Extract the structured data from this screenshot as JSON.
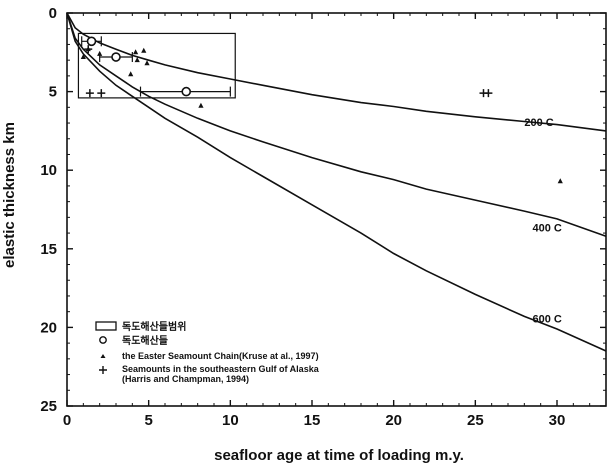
{
  "chart_data": {
    "type": "line",
    "xlabel": "seafloor age at time of loading m.y.",
    "ylabel": "elastic thickness km",
    "xlim": [
      0,
      33
    ],
    "ylim": [
      0,
      25
    ],
    "y_inverted": true,
    "x_ticks": [
      "0",
      "5",
      "10",
      "15",
      "20",
      "25",
      "30"
    ],
    "y_ticks": [
      "0",
      "5",
      "10",
      "15",
      "20",
      "25"
    ],
    "grid": false,
    "legend_position": "bottom-left",
    "series": [
      {
        "name": "200°C",
        "label_text": "200 C",
        "type": "line",
        "x": [
          0,
          0.5,
          1,
          2,
          3,
          4,
          5,
          6,
          8,
          10,
          12,
          15,
          18,
          20,
          22,
          25,
          28,
          30,
          33
        ],
        "y": [
          0,
          0.95,
          1.35,
          1.9,
          2.3,
          2.7,
          3.0,
          3.3,
          3.8,
          4.2,
          4.6,
          5.2,
          5.7,
          5.95,
          6.25,
          6.6,
          6.9,
          7.1,
          7.5
        ]
      },
      {
        "name": "400°C",
        "label_text": "400 C",
        "type": "line",
        "x": [
          0,
          0.5,
          1,
          2,
          3,
          4,
          5,
          6,
          8,
          10,
          12,
          15,
          18,
          20,
          22,
          25,
          28,
          30,
          33
        ],
        "y": [
          0,
          1.6,
          2.3,
          3.3,
          4.0,
          4.7,
          5.3,
          5.8,
          6.7,
          7.5,
          8.2,
          9.2,
          10.1,
          10.6,
          11.2,
          11.9,
          12.6,
          13.1,
          14.2
        ]
      },
      {
        "name": "600°C",
        "label_text": "600 C",
        "type": "line",
        "x": [
          0,
          0.5,
          1,
          2,
          3,
          4,
          5,
          6,
          8,
          10,
          12,
          15,
          18,
          20,
          22,
          25,
          28,
          30,
          33
        ],
        "y": [
          0,
          1.8,
          2.6,
          3.7,
          4.6,
          5.3,
          6.0,
          6.7,
          7.9,
          9.2,
          10.4,
          12.2,
          14.0,
          15.3,
          16.4,
          17.9,
          19.3,
          20.1,
          21.5
        ]
      },
      {
        "name": "독도해산들범위",
        "type": "box",
        "x_range": [
          0.7,
          10.3
        ],
        "y_range": [
          1.3,
          5.4
        ]
      },
      {
        "name": "독도해산들",
        "type": "scatter-errorbar",
        "marker": "open-circle",
        "points": [
          {
            "x": 1.5,
            "y": 1.8,
            "xerr": [
              0.9,
              2.1
            ]
          },
          {
            "x": 3.0,
            "y": 2.8,
            "xerr": [
              2.0,
              4.0
            ]
          },
          {
            "x": 7.3,
            "y": 5.0,
            "xerr": [
              4.5,
              10.0
            ]
          }
        ]
      },
      {
        "name": "the Easter Seamount Chain(Kruse at al., 1997)",
        "type": "scatter",
        "marker": "triangle",
        "x": [
          1.0,
          1.3,
          2.0,
          3.9,
          4.2,
          4.3,
          4.7,
          4.9,
          8.2,
          30.2
        ],
        "y": [
          2.8,
          2.3,
          2.6,
          3.9,
          2.5,
          3.0,
          2.4,
          3.2,
          5.9,
          10.7
        ]
      },
      {
        "name": "Seamounts in the southeastern Gulf of Alaska",
        "name_line2": "(Harris and Champman, 1994)",
        "type": "scatter",
        "marker": "plus",
        "x": [
          1.3,
          1.4,
          2.1,
          25.5,
          25.8
        ],
        "y": [
          2.3,
          5.1,
          5.1,
          5.1,
          5.1
        ]
      }
    ]
  }
}
